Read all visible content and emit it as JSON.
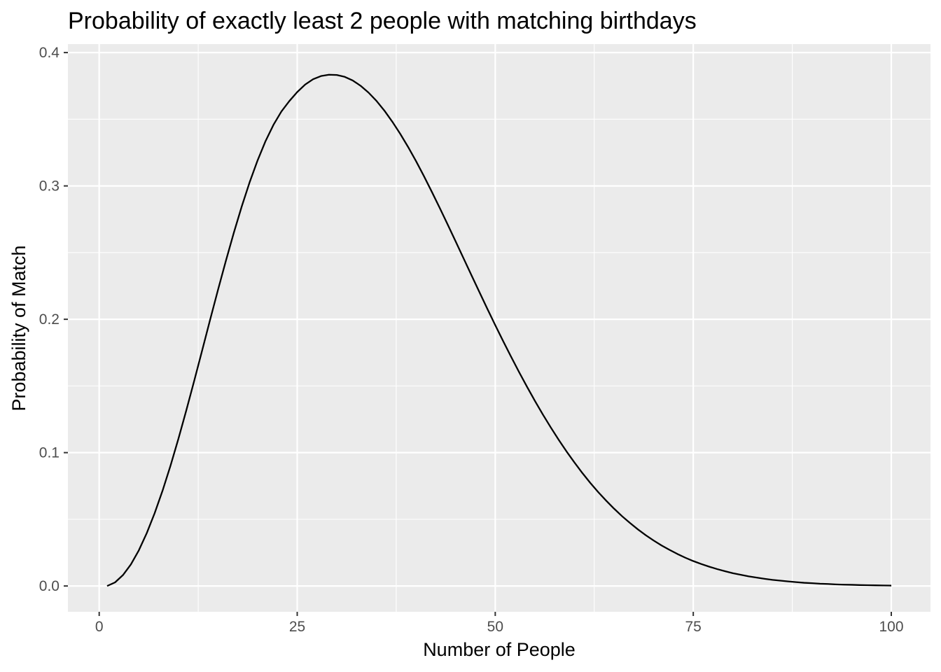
{
  "chart_data": {
    "type": "line",
    "title": "Probability of exactly least 2 people with matching birthdays",
    "xlabel": "Number of People",
    "ylabel": "Probability of Match",
    "xlim": [
      1,
      100
    ],
    "ylim": [
      0,
      0.387
    ],
    "x_ticks": [
      0,
      25,
      50,
      75,
      100
    ],
    "x_tick_labels": [
      "0",
      "25",
      "50",
      "75",
      "100"
    ],
    "y_ticks": [
      0,
      0.1,
      0.2,
      0.3,
      0.4
    ],
    "y_tick_labels": [
      "0.0",
      "0.1",
      "0.2",
      "0.3",
      "0.4"
    ],
    "grid": true,
    "legend": "none",
    "colors": {
      "panel": "#ebebeb",
      "grid": "#ffffff",
      "line": "#000000",
      "tick_text": "#4d4d4d"
    },
    "series": [
      {
        "x": [
          1,
          2,
          3,
          4,
          5,
          6,
          7,
          8,
          9,
          10,
          11,
          12,
          13,
          14,
          15,
          16,
          17,
          18,
          19,
          20,
          21,
          22,
          23,
          24,
          25,
          26,
          27,
          28,
          29,
          30,
          31,
          32,
          33,
          34,
          35,
          36,
          37,
          38,
          39,
          40,
          41,
          42,
          43,
          44,
          45,
          46,
          47,
          48,
          49,
          50,
          51,
          52,
          53,
          54,
          55,
          56,
          57,
          58,
          59,
          60,
          61,
          62,
          63,
          64,
          65,
          66,
          67,
          68,
          69,
          70,
          71,
          72,
          73,
          74,
          75,
          76,
          77,
          78,
          79,
          80,
          81,
          82,
          83,
          84,
          85,
          86,
          87,
          88,
          89,
          90,
          91,
          92,
          93,
          94,
          95,
          96,
          97,
          98,
          99,
          100
        ],
        "y": [
          0.0,
          0.0027,
          0.0082,
          0.0162,
          0.0267,
          0.0396,
          0.0546,
          0.0715,
          0.0902,
          0.1104,
          0.1318,
          0.154,
          0.1767,
          0.1996,
          0.2221,
          0.244,
          0.265,
          0.2847,
          0.3029,
          0.3192,
          0.3336,
          0.3458,
          0.3558,
          0.3636,
          0.3704,
          0.376,
          0.38,
          0.3824,
          0.3834,
          0.3832,
          0.3818,
          0.3791,
          0.3751,
          0.37,
          0.3638,
          0.3565,
          0.3482,
          0.3391,
          0.3292,
          0.3186,
          0.3073,
          0.2955,
          0.2834,
          0.271,
          0.2584,
          0.2457,
          0.233,
          0.2204,
          0.2079,
          0.1956,
          0.1836,
          0.1719,
          0.1605,
          0.1495,
          0.1389,
          0.1287,
          0.119,
          0.1097,
          0.1009,
          0.0926,
          0.0847,
          0.0773,
          0.0704,
          0.064,
          0.058,
          0.0524,
          0.0473,
          0.0425,
          0.0381,
          0.0341,
          0.0304,
          0.0271,
          0.024,
          0.0212,
          0.0187,
          0.0165,
          0.0145,
          0.0127,
          0.0111,
          0.0096,
          0.0084,
          0.0072,
          0.0063,
          0.0054,
          0.0046,
          0.004,
          0.0034,
          0.0029,
          0.0024,
          0.0021,
          0.0017,
          0.0015,
          0.0012,
          0.001,
          0.0009,
          0.0007,
          0.0006,
          0.0005,
          0.0004,
          0.0003
        ]
      }
    ]
  }
}
